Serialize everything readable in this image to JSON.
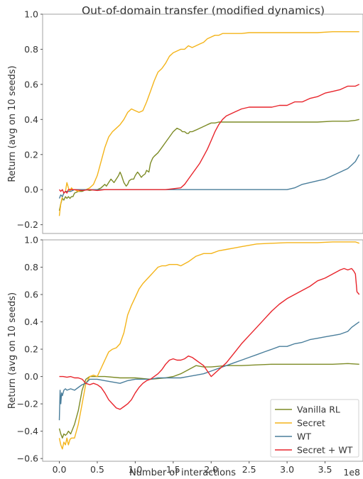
{
  "title": "Out-of-domain transfer (modified dynamics)",
  "chart_data": [
    {
      "type": "line",
      "ylabel": "Return (avg on 10 seeds)",
      "xlim": [
        -0.22,
        4.0
      ],
      "ylim": [
        -0.25,
        1.0
      ],
      "yticks": [
        -0.2,
        0.0,
        0.2,
        0.4,
        0.6,
        0.8,
        1.0
      ],
      "ytick_labels": [
        "−0.2",
        "0.0",
        "0.2",
        "0.4",
        "0.6",
        "0.8",
        "1.0"
      ],
      "grid": false,
      "series": [
        {
          "key": "vanilla",
          "color": "#7d8b26",
          "x": [
            0.0,
            0.02,
            0.04,
            0.06,
            0.08,
            0.1,
            0.12,
            0.14,
            0.16,
            0.18,
            0.2,
            0.25,
            0.3,
            0.35,
            0.4,
            0.45,
            0.5,
            0.55,
            0.6,
            0.62,
            0.65,
            0.68,
            0.7,
            0.72,
            0.75,
            0.78,
            0.8,
            0.82,
            0.85,
            0.88,
            0.9,
            0.92,
            0.95,
            0.98,
            1.0,
            1.03,
            1.05,
            1.08,
            1.1,
            1.13,
            1.15,
            1.18,
            1.2,
            1.23,
            1.25,
            1.3,
            1.35,
            1.4,
            1.45,
            1.5,
            1.55,
            1.6,
            1.62,
            1.65,
            1.68,
            1.7,
            1.72,
            1.75,
            1.8,
            1.85,
            1.9,
            1.95,
            2.0,
            2.05,
            2.1,
            2.2,
            2.3,
            2.4,
            2.5,
            2.6,
            2.8,
            3.0,
            3.2,
            3.4,
            3.6,
            3.8,
            3.9,
            3.95
          ],
          "y": [
            -0.12,
            -0.08,
            -0.05,
            -0.06,
            -0.04,
            -0.05,
            -0.04,
            -0.05,
            -0.04,
            -0.04,
            -0.02,
            -0.01,
            -0.01,
            0.0,
            -0.005,
            0.0,
            0.0,
            0.01,
            0.03,
            0.02,
            0.04,
            0.06,
            0.05,
            0.04,
            0.06,
            0.08,
            0.1,
            0.08,
            0.04,
            0.02,
            0.03,
            0.05,
            0.06,
            0.06,
            0.08,
            0.1,
            0.09,
            0.07,
            0.08,
            0.09,
            0.11,
            0.1,
            0.15,
            0.18,
            0.19,
            0.21,
            0.24,
            0.27,
            0.3,
            0.33,
            0.35,
            0.34,
            0.33,
            0.33,
            0.32,
            0.32,
            0.33,
            0.33,
            0.34,
            0.35,
            0.36,
            0.37,
            0.38,
            0.38,
            0.385,
            0.385,
            0.385,
            0.385,
            0.385,
            0.385,
            0.385,
            0.385,
            0.385,
            0.385,
            0.39,
            0.39,
            0.395,
            0.4
          ]
        },
        {
          "key": "secret",
          "color": "#f4b41a",
          "x": [
            0.0,
            0.02,
            0.04,
            0.06,
            0.08,
            0.1,
            0.12,
            0.14,
            0.16,
            0.18,
            0.2,
            0.25,
            0.3,
            0.35,
            0.4,
            0.45,
            0.5,
            0.55,
            0.6,
            0.65,
            0.7,
            0.75,
            0.8,
            0.85,
            0.9,
            0.95,
            1.0,
            1.05,
            1.1,
            1.15,
            1.2,
            1.25,
            1.3,
            1.35,
            1.4,
            1.45,
            1.5,
            1.55,
            1.6,
            1.65,
            1.7,
            1.75,
            1.8,
            1.85,
            1.9,
            1.95,
            2.0,
            2.05,
            2.1,
            2.15,
            2.2,
            2.3,
            2.4,
            2.5,
            2.6,
            2.8,
            3.0,
            3.2,
            3.4,
            3.6,
            3.8,
            3.95
          ],
          "y": [
            -0.15,
            -0.08,
            -0.04,
            -0.02,
            -0.01,
            0.04,
            0.01,
            -0.01,
            0.01,
            0.0,
            0.0,
            -0.01,
            0.0,
            0.0,
            0.01,
            0.03,
            0.08,
            0.16,
            0.24,
            0.3,
            0.33,
            0.35,
            0.37,
            0.4,
            0.44,
            0.46,
            0.45,
            0.44,
            0.45,
            0.5,
            0.56,
            0.62,
            0.67,
            0.69,
            0.72,
            0.76,
            0.78,
            0.79,
            0.8,
            0.8,
            0.82,
            0.81,
            0.82,
            0.83,
            0.84,
            0.86,
            0.87,
            0.88,
            0.88,
            0.89,
            0.89,
            0.89,
            0.89,
            0.895,
            0.895,
            0.895,
            0.895,
            0.895,
            0.895,
            0.9,
            0.9,
            0.9
          ]
        },
        {
          "key": "wt",
          "color": "#4a7e9b",
          "x": [
            0.0,
            0.02,
            0.04,
            0.06,
            0.08,
            0.1,
            0.15,
            0.2,
            0.3,
            0.4,
            0.5,
            0.6,
            0.8,
            1.0,
            1.2,
            1.4,
            1.6,
            1.8,
            2.0,
            2.4,
            2.8,
            3.0,
            3.1,
            3.2,
            3.3,
            3.4,
            3.5,
            3.6,
            3.7,
            3.8,
            3.85,
            3.9,
            3.95
          ],
          "y": [
            -0.05,
            -0.03,
            -0.04,
            -0.02,
            -0.01,
            -0.01,
            -0.01,
            0.0,
            0.0,
            0.0,
            0.0,
            0.0,
            0.0,
            0.0,
            0.0,
            0.0,
            0.0,
            0.0,
            0.0,
            0.0,
            0.0,
            0.0,
            0.01,
            0.03,
            0.04,
            0.05,
            0.06,
            0.08,
            0.1,
            0.12,
            0.14,
            0.16,
            0.2
          ]
        },
        {
          "key": "secretwt",
          "color": "#e8242b",
          "x": [
            0.0,
            0.02,
            0.04,
            0.06,
            0.08,
            0.1,
            0.12,
            0.15,
            0.2,
            0.3,
            0.4,
            0.5,
            0.6,
            0.8,
            1.0,
            1.2,
            1.4,
            1.6,
            1.65,
            1.7,
            1.75,
            1.8,
            1.85,
            1.9,
            1.95,
            2.0,
            2.05,
            2.1,
            2.15,
            2.2,
            2.3,
            2.4,
            2.5,
            2.6,
            2.7,
            2.8,
            2.9,
            3.0,
            3.1,
            3.2,
            3.3,
            3.4,
            3.5,
            3.6,
            3.7,
            3.8,
            3.85,
            3.9,
            3.95
          ],
          "y": [
            0.0,
            -0.01,
            0.0,
            -0.02,
            -0.01,
            -0.02,
            0.0,
            0.0,
            0.0,
            -0.005,
            0.0,
            -0.005,
            0.0,
            0.0,
            0.0,
            0.0,
            0.0,
            0.01,
            0.03,
            0.06,
            0.09,
            0.12,
            0.15,
            0.19,
            0.23,
            0.28,
            0.33,
            0.37,
            0.4,
            0.42,
            0.44,
            0.46,
            0.47,
            0.47,
            0.47,
            0.47,
            0.48,
            0.48,
            0.5,
            0.5,
            0.52,
            0.53,
            0.55,
            0.56,
            0.57,
            0.59,
            0.59,
            0.59,
            0.6
          ]
        }
      ]
    },
    {
      "type": "line",
      "ylabel": "Return (avg on 10 seeds)",
      "xlabel": "Number of interactions",
      "x_offset_label": "1e8",
      "xlim": [
        -0.22,
        4.0
      ],
      "ylim": [
        -0.62,
        1.0
      ],
      "xticks": [
        0.0,
        0.5,
        1.0,
        1.5,
        2.0,
        2.5,
        3.0,
        3.5
      ],
      "xtick_labels": [
        "0.0",
        "0.5",
        "1.0",
        "1.5",
        "2.0",
        "2.5",
        "3.0",
        "3.5"
      ],
      "yticks": [
        -0.6,
        -0.4,
        -0.2,
        0.0,
        0.2,
        0.4,
        0.6,
        0.8,
        1.0
      ],
      "ytick_labels": [
        "−0.6",
        "−0.4",
        "−0.2",
        "0.0",
        "0.2",
        "0.4",
        "0.6",
        "0.8",
        "1.0"
      ],
      "grid": false,
      "legend": {
        "placement": "lower-right",
        "entries": [
          {
            "label": "Vanilla RL",
            "key": "vanilla"
          },
          {
            "label": "Secret",
            "key": "secret"
          },
          {
            "label": "WT",
            "key": "wt"
          },
          {
            "label": "Secret + WT",
            "key": "secretwt"
          }
        ]
      },
      "series": [
        {
          "key": "vanilla",
          "color": "#7d8b26",
          "x": [
            0.0,
            0.02,
            0.04,
            0.06,
            0.08,
            0.1,
            0.12,
            0.15,
            0.2,
            0.25,
            0.3,
            0.35,
            0.4,
            0.45,
            0.5,
            0.6,
            0.8,
            1.0,
            1.2,
            1.4,
            1.5,
            1.6,
            1.7,
            1.8,
            1.9,
            2.0,
            2.2,
            2.4,
            2.6,
            2.8,
            3.0,
            3.2,
            3.4,
            3.6,
            3.8,
            3.95
          ],
          "y": [
            -0.38,
            -0.42,
            -0.45,
            -0.42,
            -0.43,
            -0.42,
            -0.4,
            -0.42,
            -0.35,
            -0.25,
            -0.1,
            -0.02,
            0.0,
            0.0,
            0.0,
            0.0,
            -0.01,
            -0.01,
            -0.02,
            -0.01,
            0.0,
            0.02,
            0.05,
            0.08,
            0.07,
            0.07,
            0.08,
            0.08,
            0.085,
            0.09,
            0.09,
            0.09,
            0.09,
            0.09,
            0.095,
            0.09
          ]
        },
        {
          "key": "secret",
          "color": "#f4b41a",
          "x": [
            0.0,
            0.02,
            0.04,
            0.06,
            0.08,
            0.1,
            0.12,
            0.14,
            0.16,
            0.2,
            0.25,
            0.3,
            0.35,
            0.4,
            0.45,
            0.5,
            0.55,
            0.6,
            0.65,
            0.7,
            0.75,
            0.8,
            0.85,
            0.9,
            0.95,
            1.0,
            1.05,
            1.1,
            1.15,
            1.2,
            1.25,
            1.3,
            1.35,
            1.4,
            1.45,
            1.5,
            1.55,
            1.6,
            1.7,
            1.8,
            1.9,
            2.0,
            2.1,
            2.2,
            2.3,
            2.4,
            2.5,
            2.6,
            2.8,
            3.0,
            3.2,
            3.4,
            3.6,
            3.8,
            3.9,
            3.95
          ],
          "y": [
            -0.45,
            -0.5,
            -0.53,
            -0.48,
            -0.5,
            -0.45,
            -0.5,
            -0.46,
            -0.45,
            -0.45,
            -0.35,
            -0.2,
            -0.05,
            0.0,
            0.01,
            0.0,
            0.06,
            0.12,
            0.18,
            0.2,
            0.21,
            0.24,
            0.32,
            0.45,
            0.52,
            0.58,
            0.64,
            0.68,
            0.71,
            0.74,
            0.77,
            0.8,
            0.81,
            0.81,
            0.82,
            0.82,
            0.82,
            0.81,
            0.84,
            0.88,
            0.9,
            0.9,
            0.92,
            0.93,
            0.94,
            0.95,
            0.96,
            0.97,
            0.975,
            0.98,
            0.98,
            0.98,
            0.985,
            0.985,
            0.985,
            0.975
          ]
        },
        {
          "key": "wt",
          "color": "#4a7e9b",
          "x": [
            0.0,
            0.01,
            0.02,
            0.03,
            0.04,
            0.06,
            0.08,
            0.1,
            0.15,
            0.2,
            0.25,
            0.3,
            0.35,
            0.4,
            0.5,
            0.6,
            0.7,
            0.8,
            0.9,
            1.0,
            1.1,
            1.2,
            1.3,
            1.4,
            1.5,
            1.6,
            1.7,
            1.8,
            1.9,
            2.0,
            2.1,
            2.2,
            2.3,
            2.4,
            2.5,
            2.6,
            2.7,
            2.8,
            2.9,
            3.0,
            3.1,
            3.2,
            3.3,
            3.4,
            3.5,
            3.6,
            3.7,
            3.8,
            3.85,
            3.9,
            3.95
          ],
          "y": [
            -0.32,
            -0.1,
            -0.2,
            -0.12,
            -0.14,
            -0.1,
            -0.09,
            -0.1,
            -0.09,
            -0.1,
            -0.08,
            -0.06,
            -0.05,
            -0.02,
            -0.02,
            -0.03,
            -0.04,
            -0.05,
            -0.03,
            -0.02,
            -0.02,
            -0.02,
            -0.01,
            -0.01,
            -0.01,
            -0.01,
            0.0,
            0.01,
            0.02,
            0.04,
            0.06,
            0.08,
            0.1,
            0.12,
            0.14,
            0.16,
            0.18,
            0.2,
            0.22,
            0.22,
            0.24,
            0.25,
            0.27,
            0.28,
            0.29,
            0.3,
            0.31,
            0.33,
            0.36,
            0.38,
            0.4
          ]
        },
        {
          "key": "secretwt",
          "color": "#e8242b",
          "x": [
            0.0,
            0.05,
            0.1,
            0.15,
            0.2,
            0.25,
            0.3,
            0.35,
            0.4,
            0.45,
            0.5,
            0.55,
            0.6,
            0.65,
            0.7,
            0.75,
            0.8,
            0.85,
            0.9,
            0.95,
            1.0,
            1.05,
            1.1,
            1.15,
            1.2,
            1.25,
            1.3,
            1.35,
            1.4,
            1.45,
            1.5,
            1.55,
            1.6,
            1.65,
            1.7,
            1.75,
            1.8,
            1.85,
            1.9,
            1.95,
            2.0,
            2.1,
            2.2,
            2.3,
            2.4,
            2.5,
            2.6,
            2.7,
            2.8,
            2.9,
            3.0,
            3.1,
            3.2,
            3.3,
            3.4,
            3.5,
            3.6,
            3.7,
            3.75,
            3.8,
            3.85,
            3.88,
            3.9,
            3.92,
            3.95
          ],
          "y": [
            0.0,
            0.0,
            -0.005,
            0.0,
            -0.01,
            -0.01,
            -0.02,
            -0.05,
            -0.06,
            -0.05,
            -0.06,
            -0.08,
            -0.12,
            -0.17,
            -0.2,
            -0.23,
            -0.24,
            -0.22,
            -0.2,
            -0.17,
            -0.12,
            -0.08,
            -0.05,
            -0.03,
            -0.02,
            0.0,
            0.02,
            0.05,
            0.09,
            0.12,
            0.13,
            0.12,
            0.12,
            0.13,
            0.15,
            0.14,
            0.12,
            0.1,
            0.08,
            0.04,
            0.0,
            0.05,
            0.1,
            0.17,
            0.24,
            0.3,
            0.36,
            0.42,
            0.48,
            0.53,
            0.57,
            0.6,
            0.63,
            0.66,
            0.7,
            0.72,
            0.75,
            0.78,
            0.79,
            0.78,
            0.79,
            0.77,
            0.75,
            0.62,
            0.6
          ]
        }
      ]
    }
  ]
}
